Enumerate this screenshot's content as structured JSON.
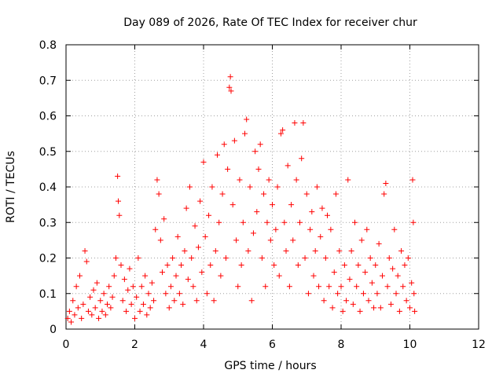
{
  "chart_data": {
    "type": "scatter",
    "title": "Day 089 of 2026, Rate Of TEC Index for receiver chur",
    "xlabel": "GPS time / hours",
    "ylabel": "ROTI / TECUs",
    "xlim": [
      0,
      12
    ],
    "ylim": [
      0,
      0.8
    ],
    "xticks": [
      0,
      2,
      4,
      6,
      8,
      10,
      12
    ],
    "yticks": [
      0,
      0.1,
      0.2,
      0.3,
      0.4,
      0.5,
      0.6,
      0.7,
      0.8
    ],
    "xtick_labels": [
      "0",
      "2",
      "4",
      "6",
      "8",
      "10",
      "12"
    ],
    "ytick_labels": [
      "0",
      "0.1",
      "0.2",
      "0.3",
      "0.4",
      "0.5",
      "0.6",
      "0.7",
      "0.8"
    ],
    "grid": true,
    "marker": "+",
    "color": "#ff0000",
    "series": [
      {
        "points": [
          [
            0.05,
            0.03
          ],
          [
            0.1,
            0.05
          ],
          [
            0.15,
            0.02
          ],
          [
            0.2,
            0.08
          ],
          [
            0.25,
            0.04
          ],
          [
            0.3,
            0.12
          ],
          [
            0.35,
            0.06
          ],
          [
            0.4,
            0.15
          ],
          [
            0.45,
            0.03
          ],
          [
            0.5,
            0.07
          ],
          [
            0.55,
            0.22
          ],
          [
            0.6,
            0.19
          ],
          [
            0.65,
            0.05
          ],
          [
            0.7,
            0.09
          ],
          [
            0.75,
            0.04
          ],
          [
            0.8,
            0.11
          ],
          [
            0.85,
            0.06
          ],
          [
            0.9,
            0.13
          ],
          [
            0.95,
            0.03
          ],
          [
            1.0,
            0.08
          ],
          [
            1.05,
            0.05
          ],
          [
            1.1,
            0.1
          ],
          [
            1.15,
            0.04
          ],
          [
            1.2,
            0.07
          ],
          [
            1.25,
            0.12
          ],
          [
            1.3,
            0.06
          ],
          [
            1.35,
            0.09
          ],
          [
            1.4,
            0.15
          ],
          [
            1.45,
            0.2
          ],
          [
            1.5,
            0.43
          ],
          [
            1.52,
            0.36
          ],
          [
            1.55,
            0.32
          ],
          [
            1.6,
            0.18
          ],
          [
            1.65,
            0.08
          ],
          [
            1.7,
            0.14
          ],
          [
            1.75,
            0.05
          ],
          [
            1.8,
            0.11
          ],
          [
            1.85,
            0.17
          ],
          [
            1.9,
            0.07
          ],
          [
            1.95,
            0.12
          ],
          [
            2.0,
            0.03
          ],
          [
            2.05,
            0.09
          ],
          [
            2.1,
            0.2
          ],
          [
            2.15,
            0.05
          ],
          [
            2.2,
            0.12
          ],
          [
            2.25,
            0.07
          ],
          [
            2.3,
            0.15
          ],
          [
            2.35,
            0.04
          ],
          [
            2.4,
            0.1
          ],
          [
            2.45,
            0.06
          ],
          [
            2.5,
            0.13
          ],
          [
            2.55,
            0.08
          ],
          [
            2.6,
            0.28
          ],
          [
            2.65,
            0.42
          ],
          [
            2.7,
            0.38
          ],
          [
            2.75,
            0.25
          ],
          [
            2.8,
            0.16
          ],
          [
            2.85,
            0.31
          ],
          [
            2.9,
            0.1
          ],
          [
            2.95,
            0.18
          ],
          [
            3.0,
            0.06
          ],
          [
            3.05,
            0.12
          ],
          [
            3.1,
            0.2
          ],
          [
            3.15,
            0.08
          ],
          [
            3.2,
            0.15
          ],
          [
            3.25,
            0.26
          ],
          [
            3.3,
            0.1
          ],
          [
            3.35,
            0.18
          ],
          [
            3.4,
            0.07
          ],
          [
            3.45,
            0.22
          ],
          [
            3.5,
            0.34
          ],
          [
            3.55,
            0.14
          ],
          [
            3.6,
            0.4
          ],
          [
            3.65,
            0.2
          ],
          [
            3.7,
            0.12
          ],
          [
            3.75,
            0.29
          ],
          [
            3.8,
            0.08
          ],
          [
            3.85,
            0.23
          ],
          [
            3.9,
            0.36
          ],
          [
            3.95,
            0.16
          ],
          [
            4.0,
            0.47
          ],
          [
            4.05,
            0.26
          ],
          [
            4.1,
            0.1
          ],
          [
            4.15,
            0.32
          ],
          [
            4.2,
            0.18
          ],
          [
            4.25,
            0.4
          ],
          [
            4.3,
            0.08
          ],
          [
            4.35,
            0.22
          ],
          [
            4.4,
            0.49
          ],
          [
            4.45,
            0.3
          ],
          [
            4.5,
            0.15
          ],
          [
            4.55,
            0.38
          ],
          [
            4.6,
            0.52
          ],
          [
            4.65,
            0.2
          ],
          [
            4.7,
            0.45
          ],
          [
            4.75,
            0.68
          ],
          [
            4.78,
            0.71
          ],
          [
            4.8,
            0.67
          ],
          [
            4.85,
            0.35
          ],
          [
            4.9,
            0.53
          ],
          [
            4.95,
            0.25
          ],
          [
            5.0,
            0.12
          ],
          [
            5.05,
            0.42
          ],
          [
            5.1,
            0.18
          ],
          [
            5.15,
            0.3
          ],
          [
            5.2,
            0.55
          ],
          [
            5.25,
            0.59
          ],
          [
            5.3,
            0.22
          ],
          [
            5.35,
            0.4
          ],
          [
            5.4,
            0.08
          ],
          [
            5.45,
            0.27
          ],
          [
            5.5,
            0.5
          ],
          [
            5.55,
            0.33
          ],
          [
            5.6,
            0.45
          ],
          [
            5.65,
            0.52
          ],
          [
            5.7,
            0.2
          ],
          [
            5.75,
            0.38
          ],
          [
            5.8,
            0.12
          ],
          [
            5.85,
            0.3
          ],
          [
            5.9,
            0.42
          ],
          [
            5.95,
            0.25
          ],
          [
            6.0,
            0.35
          ],
          [
            6.05,
            0.18
          ],
          [
            6.1,
            0.28
          ],
          [
            6.15,
            0.4
          ],
          [
            6.2,
            0.15
          ],
          [
            6.25,
            0.55
          ],
          [
            6.3,
            0.56
          ],
          [
            6.35,
            0.3
          ],
          [
            6.4,
            0.22
          ],
          [
            6.45,
            0.46
          ],
          [
            6.5,
            0.12
          ],
          [
            6.55,
            0.35
          ],
          [
            6.6,
            0.25
          ],
          [
            6.65,
            0.58
          ],
          [
            6.7,
            0.42
          ],
          [
            6.75,
            0.18
          ],
          [
            6.8,
            0.3
          ],
          [
            6.85,
            0.48
          ],
          [
            6.9,
            0.58
          ],
          [
            6.95,
            0.2
          ],
          [
            7.0,
            0.38
          ],
          [
            7.05,
            0.1
          ],
          [
            7.1,
            0.28
          ],
          [
            7.15,
            0.33
          ],
          [
            7.2,
            0.15
          ],
          [
            7.25,
            0.22
          ],
          [
            7.3,
            0.4
          ],
          [
            7.35,
            0.12
          ],
          [
            7.4,
            0.26
          ],
          [
            7.45,
            0.34
          ],
          [
            7.5,
            0.08
          ],
          [
            7.55,
            0.2
          ],
          [
            7.6,
            0.32
          ],
          [
            7.65,
            0.12
          ],
          [
            7.7,
            0.28
          ],
          [
            7.75,
            0.06
          ],
          [
            7.8,
            0.16
          ],
          [
            7.85,
            0.38
          ],
          [
            7.9,
            0.1
          ],
          [
            7.95,
            0.22
          ],
          [
            8.0,
            0.12
          ],
          [
            8.05,
            0.05
          ],
          [
            8.1,
            0.18
          ],
          [
            8.15,
            0.08
          ],
          [
            8.2,
            0.42
          ],
          [
            8.25,
            0.14
          ],
          [
            8.3,
            0.22
          ],
          [
            8.35,
            0.07
          ],
          [
            8.4,
            0.3
          ],
          [
            8.45,
            0.12
          ],
          [
            8.5,
            0.18
          ],
          [
            8.55,
            0.05
          ],
          [
            8.6,
            0.25
          ],
          [
            8.65,
            0.1
          ],
          [
            8.7,
            0.16
          ],
          [
            8.75,
            0.28
          ],
          [
            8.8,
            0.08
          ],
          [
            8.85,
            0.2
          ],
          [
            8.9,
            0.13
          ],
          [
            8.95,
            0.06
          ],
          [
            9.0,
            0.18
          ],
          [
            9.05,
            0.1
          ],
          [
            9.1,
            0.24
          ],
          [
            9.15,
            0.06
          ],
          [
            9.2,
            0.15
          ],
          [
            9.25,
            0.38
          ],
          [
            9.3,
            0.41
          ],
          [
            9.35,
            0.12
          ],
          [
            9.4,
            0.2
          ],
          [
            9.45,
            0.07
          ],
          [
            9.5,
            0.17
          ],
          [
            9.55,
            0.28
          ],
          [
            9.6,
            0.1
          ],
          [
            9.65,
            0.15
          ],
          [
            9.7,
            0.05
          ],
          [
            9.75,
            0.22
          ],
          [
            9.8,
            0.12
          ],
          [
            9.85,
            0.18
          ],
          [
            9.9,
            0.08
          ],
          [
            9.95,
            0.2
          ],
          [
            10.0,
            0.06
          ],
          [
            10.05,
            0.13
          ],
          [
            10.08,
            0.42
          ],
          [
            10.1,
            0.3
          ],
          [
            10.12,
            0.1
          ],
          [
            10.14,
            0.05
          ]
        ]
      }
    ]
  }
}
